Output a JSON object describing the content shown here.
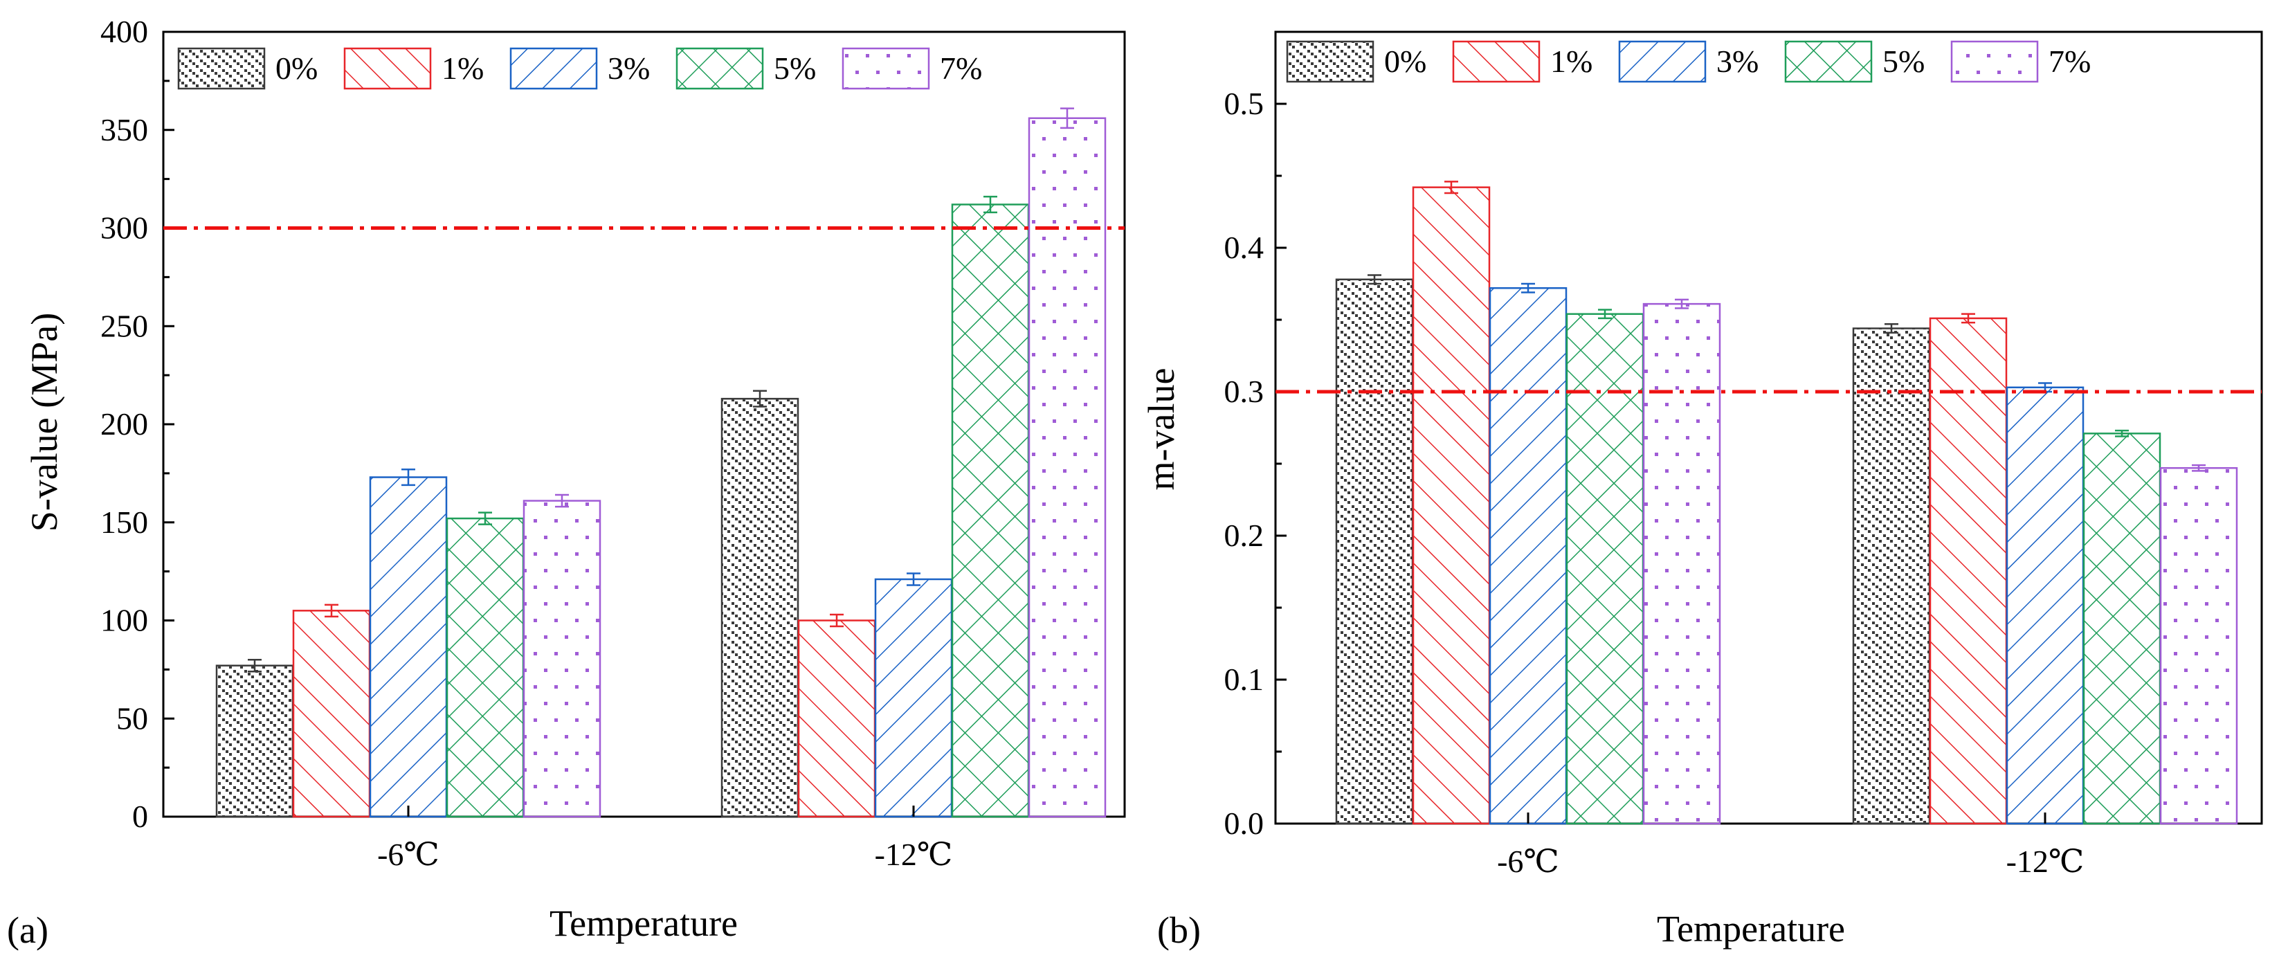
{
  "figure": {
    "panels": [
      "(a)",
      "(b)"
    ]
  },
  "legend_entries": [
    {
      "label": "0%",
      "color": "#3a3a3a",
      "pattern": "dots-stagger"
    },
    {
      "label": "1%",
      "color": "#e8262a",
      "pattern": "diag-up"
    },
    {
      "label": "3%",
      "color": "#1b63c6",
      "pattern": "diag-down"
    },
    {
      "label": "5%",
      "color": "#1f9e5a",
      "pattern": "crosshatch"
    },
    {
      "label": "7%",
      "color": "#a05cd6",
      "pattern": "sparse-dots"
    }
  ],
  "reference_line_color": "#ee1111",
  "chart_data": [
    {
      "panel": "(a)",
      "type": "bar",
      "title": "",
      "xlabel": "Temperature",
      "ylabel": "S-value (MPa)",
      "categories": [
        "-6℃",
        "-12℃"
      ],
      "ylim": [
        0,
        400
      ],
      "yticks": [
        0,
        50,
        100,
        150,
        200,
        250,
        300,
        350,
        400
      ],
      "ytick_labels": [
        "0",
        "50",
        "100",
        "150",
        "200",
        "250",
        "300",
        "350",
        "400"
      ],
      "reference_line": 300,
      "legend_position": "top-left",
      "series": [
        {
          "name": "0%",
          "values": [
            77,
            213
          ],
          "errors": [
            3,
            4
          ]
        },
        {
          "name": "1%",
          "values": [
            105,
            100
          ],
          "errors": [
            3,
            3
          ]
        },
        {
          "name": "3%",
          "values": [
            173,
            121
          ],
          "errors": [
            4,
            3
          ]
        },
        {
          "name": "5%",
          "values": [
            152,
            312
          ],
          "errors": [
            3,
            4
          ]
        },
        {
          "name": "7%",
          "values": [
            161,
            356
          ],
          "errors": [
            3,
            5
          ]
        }
      ]
    },
    {
      "panel": "(b)",
      "type": "bar",
      "title": "",
      "xlabel": "Temperature",
      "ylabel": "m-value",
      "categories": [
        "-6℃",
        "-12℃"
      ],
      "ylim": [
        0,
        0.55
      ],
      "yticks": [
        0,
        0.1,
        0.2,
        0.3,
        0.4,
        0.5
      ],
      "ytick_labels": [
        "0.0",
        "0.1",
        "0.2",
        "0.3",
        "0.4",
        "0.5"
      ],
      "reference_line": 0.3,
      "legend_position": "top-left",
      "series": [
        {
          "name": "0%",
          "values": [
            0.378,
            0.344
          ],
          "errors": [
            0.003,
            0.003
          ]
        },
        {
          "name": "1%",
          "values": [
            0.442,
            0.351
          ],
          "errors": [
            0.004,
            0.003
          ]
        },
        {
          "name": "3%",
          "values": [
            0.372,
            0.303
          ],
          "errors": [
            0.003,
            0.003
          ]
        },
        {
          "name": "5%",
          "values": [
            0.354,
            0.271
          ],
          "errors": [
            0.003,
            0.002
          ]
        },
        {
          "name": "7%",
          "values": [
            0.361,
            0.247
          ],
          "errors": [
            0.003,
            0.002
          ]
        }
      ]
    }
  ]
}
